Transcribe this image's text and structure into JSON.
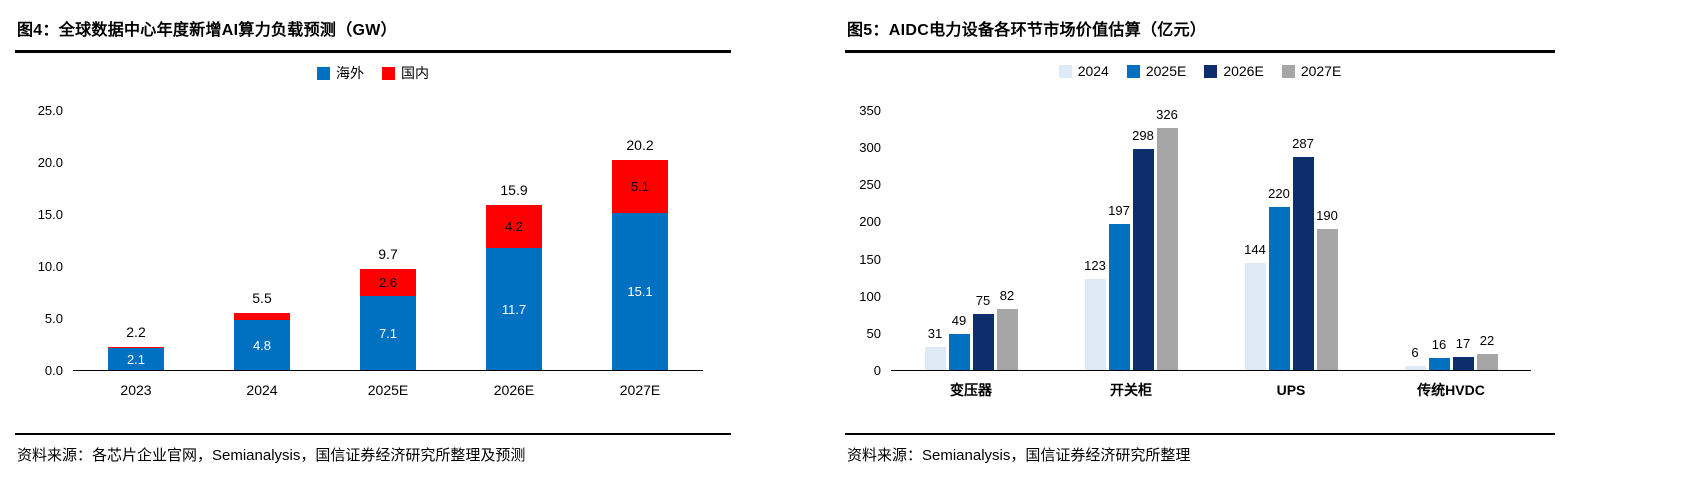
{
  "left_panel": {
    "title": "图4：全球数据中心年度新增AI算力负载预测（GW）",
    "source": "资料来源：各芯片企业官网，Semianalysis，国信证券经济研究所整理及预测"
  },
  "right_panel": {
    "title": "图5：AIDC电力设备各环节市场价值估算（亿元）",
    "source": "资料来源：Semianalysis，国信证券经济研究所整理"
  },
  "chart_data": [
    {
      "type": "bar",
      "stacked": true,
      "title": "图4：全球数据中心年度新增AI算力负载预测（GW）",
      "categories": [
        "2023",
        "2024",
        "2025E",
        "2026E",
        "2027E"
      ],
      "series": [
        {
          "name": "海外",
          "color": "#0070C0",
          "values": [
            2.1,
            4.8,
            7.1,
            11.7,
            15.1
          ],
          "labels": [
            "2.1",
            "4.8",
            "7.1",
            "11.7",
            "15.1"
          ],
          "label_color": "#ffffff"
        },
        {
          "name": "国内",
          "color": "#FF0000",
          "values": [
            0.1,
            0.7,
            2.6,
            4.2,
            5.1
          ],
          "labels": [
            "",
            "",
            "2.6",
            "4.2",
            "5.1"
          ],
          "label_color": "#000000"
        }
      ],
      "totals": [
        "2.2",
        "5.5",
        "9.7",
        "15.9",
        "20.2"
      ],
      "ylim": [
        0,
        25
      ],
      "yticks": [
        "0.0",
        "5.0",
        "10.0",
        "15.0",
        "20.0",
        "25.0"
      ],
      "legend_position": "top",
      "grid": false
    },
    {
      "type": "bar",
      "stacked": false,
      "title": "图5：AIDC电力设备各环节市场价值估算（亿元）",
      "categories": [
        "变压器",
        "开关柜",
        "UPS",
        "传统HVDC"
      ],
      "series": [
        {
          "name": "2024",
          "color": "#DEEAF6",
          "values": [
            31,
            123,
            144,
            6
          ]
        },
        {
          "name": "2025E",
          "color": "#0070C0",
          "values": [
            49,
            197,
            220,
            16
          ]
        },
        {
          "name": "2026E",
          "color": "#0D2D6C",
          "values": [
            75,
            298,
            287,
            17
          ]
        },
        {
          "name": "2027E",
          "color": "#A6A6A6",
          "values": [
            82,
            326,
            190,
            22
          ]
        }
      ],
      "ylim": [
        0,
        350
      ],
      "yticks": [
        "0",
        "50",
        "100",
        "150",
        "200",
        "250",
        "300",
        "350"
      ],
      "legend_position": "top",
      "grid": false
    }
  ]
}
